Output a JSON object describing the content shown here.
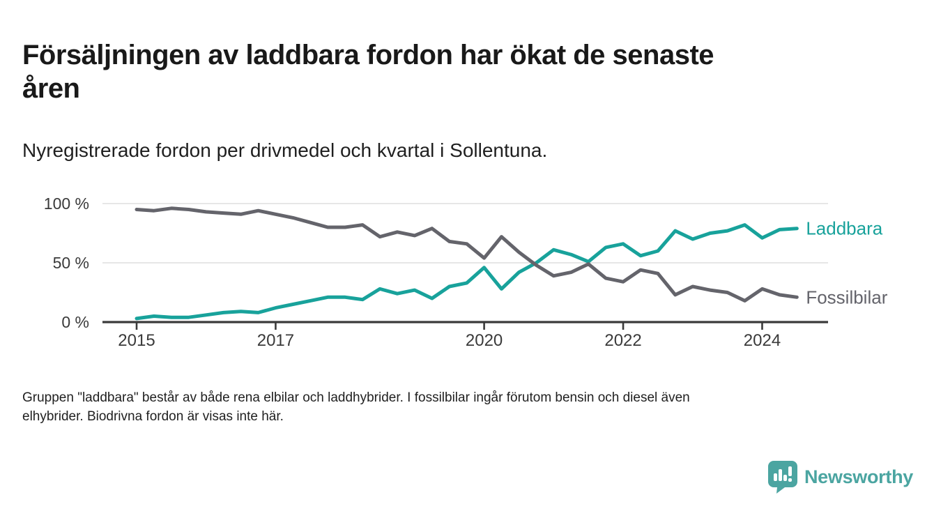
{
  "title": "Försäljningen av laddbara fordon har ökat de senaste\nåren",
  "subtitle": "Nyregistrerade fordon per drivmedel och kvartal i Sollentuna.",
  "footnote": "Gruppen \"laddbara\" består av både rena elbilar och laddhybrider. I fossilbilar ingår förutom bensin och diesel även\nelhybrider. Biodrivna fordon är visas inte här.",
  "branding": {
    "logo_text": "Newsworthy",
    "logo_color": "#4BA5A1",
    "logo_icon": "bar-chart-speech-bubble-icon"
  },
  "colors": {
    "title_text": "#191919",
    "body_text": "#1f1f1f",
    "axis_text": "#3a3a3a",
    "axis_line": "#3a3a3a",
    "gridline": "#dddddd",
    "background": "#ffffff"
  },
  "chart_data": {
    "type": "line",
    "title": "Försäljningen av laddbara fordon har ökat de senaste åren",
    "subtitle": "Nyregistrerade fordon per drivmedel och kvartal i Sollentuna.",
    "x_unit": "quarter",
    "x_start": "2015-Q1",
    "x_end": "2024-Q3",
    "points_per_series": 39,
    "grid": true,
    "legend_position": "end-of-line",
    "y_axis": {
      "range": [
        0,
        100
      ],
      "tick_values": [
        0,
        50,
        100
      ],
      "tick_labels": [
        "0 %",
        "50 %",
        "100 %"
      ]
    },
    "x_axis": {
      "tick_labels": [
        "2015",
        "2017",
        "2020",
        "2022",
        "2024"
      ],
      "tick_quarter_index": [
        0,
        8,
        20,
        28,
        36
      ]
    },
    "series": [
      {
        "name": "Laddbara",
        "color": "#18A29B",
        "values": [
          3,
          5,
          4,
          4,
          6,
          8,
          9,
          8,
          12,
          15,
          18,
          21,
          21,
          19,
          28,
          24,
          27,
          20,
          30,
          33,
          46,
          28,
          42,
          50,
          61,
          57,
          51,
          63,
          66,
          56,
          60,
          77,
          70,
          75,
          77,
          82,
          71,
          78,
          79
        ]
      },
      {
        "name": "Fossilbilar",
        "color": "#64646B",
        "values": [
          95,
          94,
          96,
          95,
          93,
          92,
          91,
          94,
          91,
          88,
          84,
          80,
          80,
          82,
          72,
          76,
          73,
          79,
          68,
          66,
          54,
          72,
          59,
          48,
          39,
          42,
          49,
          37,
          34,
          44,
          41,
          23,
          30,
          27,
          25,
          18,
          28,
          23,
          21
        ]
      }
    ]
  }
}
